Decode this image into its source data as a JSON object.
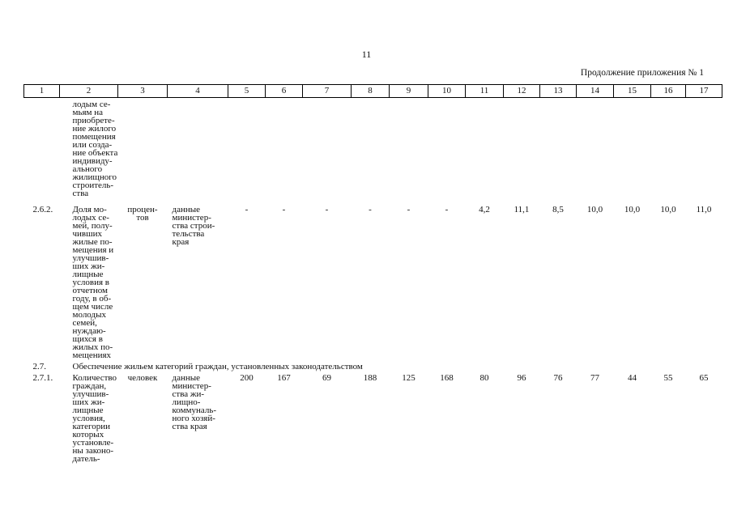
{
  "page_number": "11",
  "continuation_label": "Продолжение приложения № 1",
  "header_columns": [
    "1",
    "2",
    "3",
    "4",
    "5",
    "6",
    "7",
    "8",
    "9",
    "10",
    "11",
    "12",
    "13",
    "14",
    "15",
    "16",
    "17"
  ],
  "rows": {
    "cont": {
      "name": "лодым се-\nмьям на\nприобрете-\nние жилого\nпомещения\nили созда-\nние объекта\nиндивиду-\nального\nжилищного\nстроитель-\nства"
    },
    "r262": {
      "num": "2.6.2.",
      "name": "Доля мо-\nлодых се-\nмей, полу-\nчивших\nжилые по-\nмещения и\nулучшив-\nших жи-\nлищные\nусловия в\nотчетном\nгоду, в об-\nщем числе\nмолодых\nсемей,\nнуждаю-\nщихся в\nжилых по-\nмещениях",
      "unit": "процен-\nтов",
      "source": "данные\nминистер-\nства строи-\nтельства\nкрая",
      "values": [
        "-",
        "-",
        "-",
        "-",
        "-",
        "-",
        "4,2",
        "11,1",
        "8,5",
        "10,0",
        "10,0",
        "10,0",
        "11,0"
      ]
    },
    "r27": {
      "num": "2.7.",
      "title": "Обеспечение жильем категорий граждан, установленных законодательством"
    },
    "r271": {
      "num": "2.7.1.",
      "name": "Количество\nграждан,\nулучшив-\nших жи-\nлищные\nусловия,\nкатегории\nкоторых\nустановле-\nны законо-\nдатель-",
      "unit": "человек",
      "source": "данные\nминистер-\nства жи-\nлищно-\nкоммуналь-\nного хозяй-\nства края",
      "values": [
        "200",
        "167",
        "69",
        "188",
        "125",
        "168",
        "80",
        "96",
        "76",
        "77",
        "44",
        "55",
        "65"
      ]
    }
  }
}
